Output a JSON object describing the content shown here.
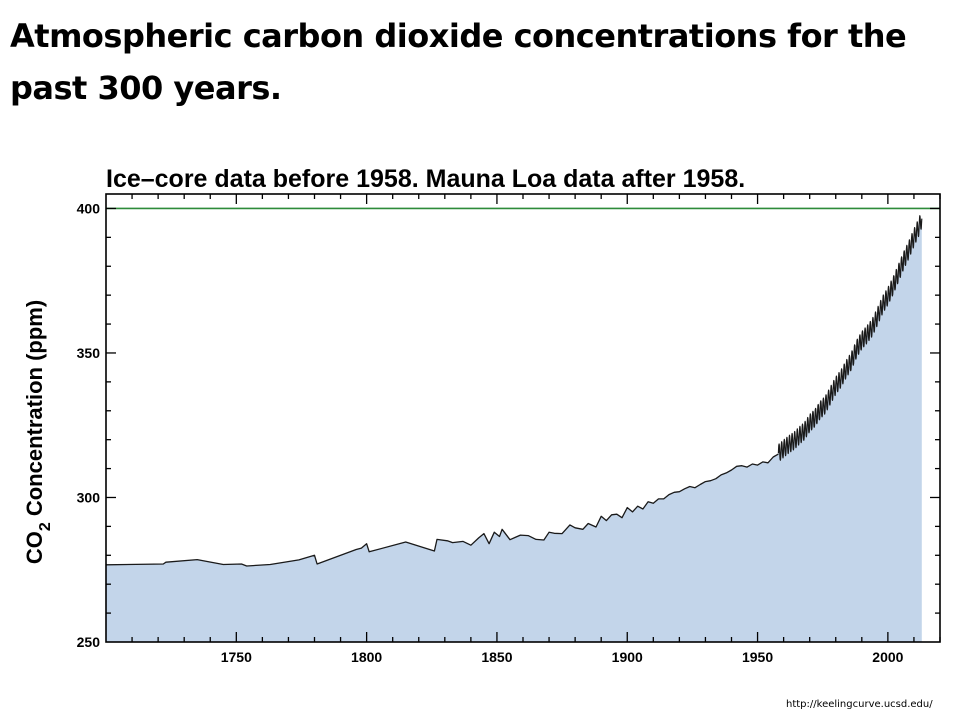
{
  "slide": {
    "title": "Atmospheric carbon dioxide concentrations for the past 300 years.",
    "source": "http://keelingcurve.ucsd.edu/"
  },
  "colors": {
    "area_fill": "#c3d5ea",
    "line": "#1a1a1a",
    "reference_line": "#2e8b3a",
    "axis": "#000000"
  },
  "chart_data": {
    "type": "area",
    "title": "Ice–core data before 1958. Mauna Loa data after 1958.",
    "ylabel_main": "CO",
    "ylabel_sub": "2",
    "ylabel_rest": " Concentration (ppm)",
    "xlim": [
      1700,
      2020
    ],
    "ylim": [
      250,
      405
    ],
    "x_ticks": [
      1750,
      1800,
      1850,
      1900,
      1950,
      2000
    ],
    "y_ticks": [
      250,
      300,
      350,
      400
    ],
    "grid": false,
    "reference_line": {
      "y": 400
    },
    "ice_core": {
      "name": "Ice-core data",
      "x": [
        1700,
        1722,
        1723,
        1735,
        1745,
        1752,
        1754,
        1763,
        1774,
        1780,
        1781,
        1796,
        1798,
        1800,
        1801,
        1815,
        1826,
        1827,
        1831,
        1833,
        1837,
        1840,
        1843,
        1845,
        1847,
        1849,
        1851,
        1852,
        1855,
        1857,
        1859,
        1862,
        1865,
        1868,
        1870,
        1872,
        1875,
        1878,
        1880,
        1883,
        1885,
        1888,
        1890,
        1892,
        1894,
        1896,
        1898,
        1900,
        1902,
        1904,
        1906,
        1908,
        1910,
        1912,
        1914,
        1916,
        1918,
        1920,
        1922,
        1924,
        1926,
        1928,
        1930,
        1932,
        1934,
        1936,
        1938,
        1940,
        1942,
        1944,
        1946,
        1948,
        1950,
        1952,
        1954,
        1956,
        1958
      ],
      "values": [
        276.7,
        277.0,
        277.6,
        278.5,
        276.8,
        277.0,
        276.3,
        276.8,
        278.4,
        280.0,
        277.0,
        282.0,
        282.5,
        284.0,
        281.2,
        284.6,
        281.5,
        285.5,
        285.0,
        284.4,
        284.8,
        283.5,
        286.0,
        287.5,
        284.0,
        288.0,
        286.5,
        289.0,
        285.4,
        286.2,
        287.0,
        286.8,
        285.5,
        285.3,
        288.0,
        287.6,
        287.5,
        290.5,
        289.5,
        289.0,
        291.0,
        289.8,
        293.5,
        292.0,
        294.0,
        294.2,
        293.0,
        296.5,
        295.0,
        297.0,
        296.0,
        298.5,
        298.0,
        299.5,
        299.5,
        301.0,
        301.8,
        302.0,
        303.0,
        303.8,
        303.4,
        304.5,
        305.5,
        305.8,
        306.5,
        307.8,
        308.5,
        309.5,
        310.8,
        311.0,
        310.5,
        311.6,
        311.2,
        312.3,
        312.0,
        314.0,
        315.0
      ]
    },
    "mauna_loa": {
      "name": "Mauna Loa data",
      "x": [
        1958,
        1960,
        1962,
        1964,
        1966,
        1968,
        1970,
        1972,
        1974,
        1976,
        1978,
        1980,
        1982,
        1984,
        1986,
        1988,
        1990,
        1992,
        1994,
        1996,
        1998,
        2000,
        2002,
        2004,
        2006,
        2008,
        2010,
        2012,
        2013
      ],
      "values": [
        315.3,
        316.9,
        318.4,
        319.6,
        321.4,
        323.0,
        325.7,
        327.5,
        330.2,
        332.1,
        335.4,
        338.7,
        341.1,
        344.4,
        347.2,
        351.4,
        354.4,
        356.4,
        358.8,
        362.6,
        366.7,
        369.6,
        373.2,
        377.5,
        381.9,
        385.6,
        389.9,
        393.8,
        396.5
      ],
      "seasonal_amplitude": 3
    }
  }
}
